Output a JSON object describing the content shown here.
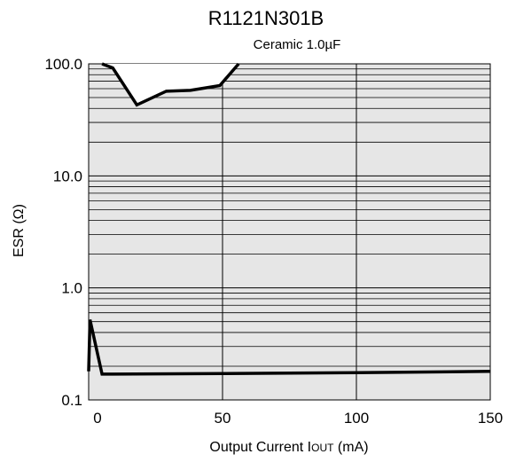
{
  "chart_data": {
    "type": "line",
    "title": "R1121N301B",
    "subtitle": "Ceramic 1.0µF",
    "xlabel": "Output Current IOUT (mA)",
    "xlabel_prefix": "Output Current I",
    "xlabel_subscript": "OUT",
    "xlabel_suffix": " (mA)",
    "ylabel": "ESR (Ω)",
    "xlim": [
      0,
      150
    ],
    "ylim": [
      0.1,
      100
    ],
    "yscale": "log",
    "grid": true,
    "x_ticks": [
      {
        "value": 0,
        "label": "0"
      },
      {
        "value": 50,
        "label": "50"
      },
      {
        "value": 100,
        "label": "100"
      },
      {
        "value": 150,
        "label": "150"
      }
    ],
    "y_ticks": [
      {
        "value": 100,
        "label": "100.0"
      },
      {
        "value": 10,
        "label": "10.0"
      },
      {
        "value": 1,
        "label": "1.0"
      },
      {
        "value": 0.1,
        "label": "0.1"
      }
    ],
    "stable_region_fill": "#e6e6e6",
    "series": [
      {
        "role": "upper-boundary",
        "x": [
          5,
          9,
          18,
          29,
          38,
          49,
          56
        ],
        "y": [
          100,
          92,
          43,
          57,
          58,
          64,
          100
        ]
      },
      {
        "role": "lower-boundary",
        "x": [
          0,
          0.5,
          5,
          50,
          100,
          150
        ],
        "y": [
          0.18,
          0.52,
          0.17,
          0.172,
          0.175,
          0.18
        ]
      }
    ]
  }
}
